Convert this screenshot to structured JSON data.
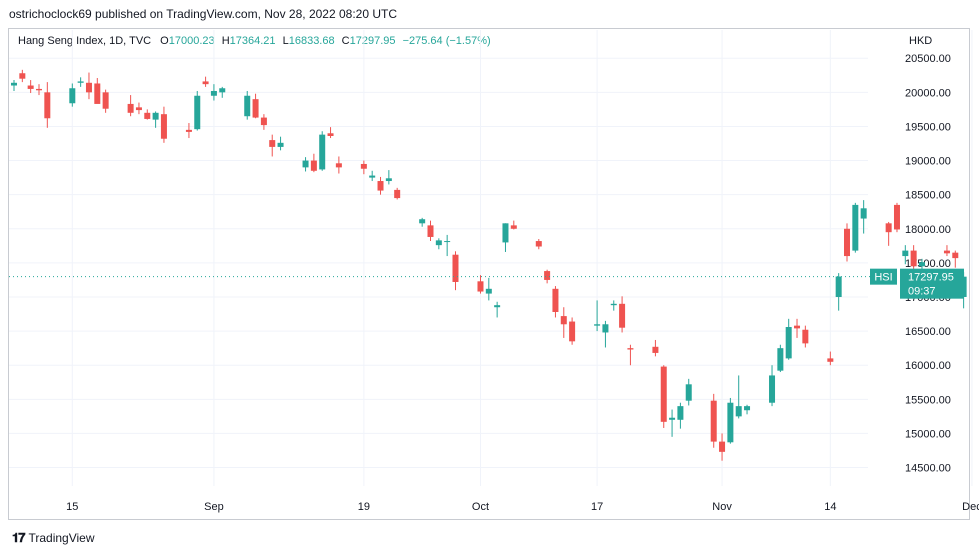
{
  "header": {
    "published_by": "ostrichoclock69 published on TradingView.com, Nov 28, 2022 08:20 UTC"
  },
  "legend": {
    "symbol": "Hang Seng Index, 1D, TVC",
    "open_label": "O",
    "open": "17000.23",
    "high_label": "H",
    "high": "17364.21",
    "low_label": "L",
    "low": "16833.68",
    "close_label": "C",
    "close": "17297.95",
    "change": "−275.64 (−1.57%)"
  },
  "currency": "HKD",
  "price_tag": {
    "symbol": "HSI",
    "price": "17297.95",
    "countdown": "09:37"
  },
  "footer": {
    "logo": "TradingView"
  },
  "colors": {
    "up": "#26a69a",
    "down": "#ef5350",
    "text": "#131722",
    "grid": "#f0f3fa"
  },
  "chart_data": {
    "type": "candlestick",
    "ylim": [
      14200,
      20650
    ],
    "y_ticks": [
      "20500.00",
      "20000.00",
      "19500.00",
      "19000.00",
      "18500.00",
      "18000.00",
      "17500.00",
      "17000.00",
      "16500.00",
      "16000.00",
      "15500.00",
      "15000.00",
      "14500.00"
    ],
    "y_tick_values": [
      20500,
      20000,
      19500,
      19000,
      18500,
      18000,
      17500,
      17000,
      16500,
      16000,
      15500,
      15000,
      14500
    ],
    "x_tick_labels": [
      {
        "label": "15",
        "date": "2022-08-15"
      },
      {
        "label": "Sep",
        "date": "2022-09-01"
      },
      {
        "label": "19",
        "date": "2022-09-19"
      },
      {
        "label": "Oct",
        "date": "2022-10-03"
      },
      {
        "label": "17",
        "date": "2022-10-17"
      },
      {
        "label": "Nov",
        "date": "2022-11-01"
      },
      {
        "label": "14",
        "date": "2022-11-14"
      },
      {
        "label": "Dec",
        "date": "2022-12-01"
      }
    ],
    "last_price": 17297.95,
    "candles": [
      {
        "date": "2022-08-08",
        "o": 20100,
        "h": 20180,
        "l": 20020,
        "c": 20140
      },
      {
        "date": "2022-08-09",
        "o": 20280,
        "h": 20330,
        "l": 20150,
        "c": 20200
      },
      {
        "date": "2022-08-10",
        "o": 20100,
        "h": 20180,
        "l": 19990,
        "c": 20050
      },
      {
        "date": "2022-08-11",
        "o": 20050,
        "h": 20120,
        "l": 19960,
        "c": 20030
      },
      {
        "date": "2022-08-12",
        "o": 20000,
        "h": 20150,
        "l": 19480,
        "c": 19620
      },
      {
        "date": "2022-08-15",
        "o": 19840,
        "h": 20130,
        "l": 19790,
        "c": 20060
      },
      {
        "date": "2022-08-16",
        "o": 20140,
        "h": 20220,
        "l": 20080,
        "c": 20160
      },
      {
        "date": "2022-08-17",
        "o": 20140,
        "h": 20290,
        "l": 19900,
        "c": 20000
      },
      {
        "date": "2022-08-18",
        "o": 20130,
        "h": 20210,
        "l": 19870,
        "c": 19830
      },
      {
        "date": "2022-08-19",
        "o": 20000,
        "h": 20040,
        "l": 19700,
        "c": 19760
      },
      {
        "date": "2022-08-22",
        "o": 19830,
        "h": 19960,
        "l": 19650,
        "c": 19700
      },
      {
        "date": "2022-08-23",
        "o": 19780,
        "h": 19850,
        "l": 19680,
        "c": 19740
      },
      {
        "date": "2022-08-24",
        "o": 19700,
        "h": 19750,
        "l": 19600,
        "c": 19610
      },
      {
        "date": "2022-08-25",
        "o": 19600,
        "h": 19720,
        "l": 19480,
        "c": 19700
      },
      {
        "date": "2022-08-26",
        "o": 19680,
        "h": 19790,
        "l": 19260,
        "c": 19320
      },
      {
        "date": "2022-08-29",
        "o": 19450,
        "h": 19550,
        "l": 19330,
        "c": 19420
      },
      {
        "date": "2022-08-30",
        "o": 19460,
        "h": 20020,
        "l": 19440,
        "c": 19950
      },
      {
        "date": "2022-08-31",
        "o": 20160,
        "h": 20230,
        "l": 20080,
        "c": 20120
      },
      {
        "date": "2022-09-01",
        "o": 19950,
        "h": 20120,
        "l": 19880,
        "c": 20020
      },
      {
        "date": "2022-09-02",
        "o": 20000,
        "h": 20080,
        "l": 19920,
        "c": 20060
      },
      {
        "date": "2022-09-05",
        "o": 19650,
        "h": 20020,
        "l": 19600,
        "c": 19950
      },
      {
        "date": "2022-09-06",
        "o": 19900,
        "h": 19980,
        "l": 19620,
        "c": 19630
      },
      {
        "date": "2022-09-07",
        "o": 19630,
        "h": 19680,
        "l": 19450,
        "c": 19520
      },
      {
        "date": "2022-09-08",
        "o": 19300,
        "h": 19380,
        "l": 19060,
        "c": 19200
      },
      {
        "date": "2022-09-09",
        "o": 19200,
        "h": 19350,
        "l": 19150,
        "c": 19260
      },
      {
        "date": "2022-09-12",
        "o": 18900,
        "h": 19050,
        "l": 18840,
        "c": 19000
      },
      {
        "date": "2022-09-13",
        "o": 19000,
        "h": 19100,
        "l": 18830,
        "c": 18850
      },
      {
        "date": "2022-09-14",
        "o": 18870,
        "h": 19430,
        "l": 18850,
        "c": 19380
      },
      {
        "date": "2022-09-15",
        "o": 19400,
        "h": 19490,
        "l": 19330,
        "c": 19360
      },
      {
        "date": "2022-09-16",
        "o": 18960,
        "h": 19060,
        "l": 18810,
        "c": 18900
      },
      {
        "date": "2022-09-19",
        "o": 18950,
        "h": 19000,
        "l": 18800,
        "c": 18880
      },
      {
        "date": "2022-09-20",
        "o": 18750,
        "h": 18850,
        "l": 18700,
        "c": 18780
      },
      {
        "date": "2022-09-21",
        "o": 18700,
        "h": 18760,
        "l": 18500,
        "c": 18560
      },
      {
        "date": "2022-09-22",
        "o": 18700,
        "h": 18860,
        "l": 18650,
        "c": 18740
      },
      {
        "date": "2022-09-23",
        "o": 18570,
        "h": 18600,
        "l": 18430,
        "c": 18450
      },
      {
        "date": "2022-09-26",
        "o": 18080,
        "h": 18160,
        "l": 18030,
        "c": 18140
      },
      {
        "date": "2022-09-27",
        "o": 18050,
        "h": 18120,
        "l": 17820,
        "c": 17880
      },
      {
        "date": "2022-09-28",
        "o": 17760,
        "h": 17860,
        "l": 17700,
        "c": 17830
      },
      {
        "date": "2022-09-29",
        "o": 17820,
        "h": 17910,
        "l": 17600,
        "c": 17820
      },
      {
        "date": "2022-09-30",
        "o": 17620,
        "h": 17670,
        "l": 17100,
        "c": 17220
      },
      {
        "date": "2022-10-03",
        "o": 17230,
        "h": 17320,
        "l": 17050,
        "c": 17080
      },
      {
        "date": "2022-10-04",
        "o": 17050,
        "h": 17280,
        "l": 16950,
        "c": 17120
      },
      {
        "date": "2022-10-05",
        "o": 16850,
        "h": 16930,
        "l": 16700,
        "c": 16880
      },
      {
        "date": "2022-10-06",
        "o": 17800,
        "h": 18080,
        "l": 17660,
        "c": 18080
      },
      {
        "date": "2022-10-07",
        "o": 18050,
        "h": 18120,
        "l": 17990,
        "c": 18000
      },
      {
        "date": "2022-10-10",
        "o": 17820,
        "h": 17850,
        "l": 17700,
        "c": 17740
      },
      {
        "date": "2022-10-11",
        "o": 17380,
        "h": 17400,
        "l": 17200,
        "c": 17250
      },
      {
        "date": "2022-10-12",
        "o": 17120,
        "h": 17160,
        "l": 16700,
        "c": 16780
      },
      {
        "date": "2022-10-13",
        "o": 16720,
        "h": 16850,
        "l": 16400,
        "c": 16600
      },
      {
        "date": "2022-10-14",
        "o": 16640,
        "h": 16700,
        "l": 16300,
        "c": 16350
      },
      {
        "date": "2022-10-17",
        "o": 16580,
        "h": 16950,
        "l": 16500,
        "c": 16600
      },
      {
        "date": "2022-10-18",
        "o": 16480,
        "h": 16650,
        "l": 16260,
        "c": 16600
      },
      {
        "date": "2022-10-19",
        "o": 16880,
        "h": 16950,
        "l": 16800,
        "c": 16900
      },
      {
        "date": "2022-10-20",
        "o": 16900,
        "h": 17010,
        "l": 16480,
        "c": 16550
      },
      {
        "date": "2022-10-21",
        "o": 16250,
        "h": 16300,
        "l": 16000,
        "c": 16230
      },
      {
        "date": "2022-10-24",
        "o": 16270,
        "h": 16370,
        "l": 16130,
        "c": 16180
      },
      {
        "date": "2022-10-25",
        "o": 15980,
        "h": 16000,
        "l": 15080,
        "c": 15170
      },
      {
        "date": "2022-10-26",
        "o": 15200,
        "h": 15350,
        "l": 14950,
        "c": 15230
      },
      {
        "date": "2022-10-27",
        "o": 15200,
        "h": 15450,
        "l": 15070,
        "c": 15400
      },
      {
        "date": "2022-10-28",
        "o": 15480,
        "h": 15800,
        "l": 15410,
        "c": 15720
      },
      {
        "date": "2022-10-31",
        "o": 15480,
        "h": 15580,
        "l": 14790,
        "c": 14880
      },
      {
        "date": "2022-11-01",
        "o": 14880,
        "h": 15000,
        "l": 14600,
        "c": 14730
      },
      {
        "date": "2022-11-02",
        "o": 14870,
        "h": 15520,
        "l": 14850,
        "c": 15450
      },
      {
        "date": "2022-11-03",
        "o": 15250,
        "h": 15850,
        "l": 15220,
        "c": 15400
      },
      {
        "date": "2022-11-04",
        "o": 15340,
        "h": 15420,
        "l": 15280,
        "c": 15400
      },
      {
        "date": "2022-11-07",
        "o": 15450,
        "h": 16000,
        "l": 15400,
        "c": 15850
      },
      {
        "date": "2022-11-08",
        "o": 15920,
        "h": 16300,
        "l": 15900,
        "c": 16250
      },
      {
        "date": "2022-11-09",
        "o": 16100,
        "h": 16680,
        "l": 16080,
        "c": 16560
      },
      {
        "date": "2022-11-10",
        "o": 16580,
        "h": 16680,
        "l": 16400,
        "c": 16540
      },
      {
        "date": "2022-11-11",
        "o": 16520,
        "h": 16580,
        "l": 16260,
        "c": 16320
      },
      {
        "date": "2022-11-14",
        "o": 16100,
        "h": 16200,
        "l": 16000,
        "c": 16050
      },
      {
        "date": "2022-11-15",
        "o": 17000,
        "h": 17350,
        "l": 16800,
        "c": 17300
      },
      {
        "date": "2022-11-16",
        "o": 18000,
        "h": 18080,
        "l": 17520,
        "c": 17600
      },
      {
        "date": "2022-11-17",
        "o": 17680,
        "h": 18380,
        "l": 17650,
        "c": 18350
      },
      {
        "date": "2022-11-18",
        "o": 18150,
        "h": 18420,
        "l": 17930,
        "c": 18300
      },
      {
        "date": "2022-11-21",
        "o": 18080,
        "h": 18100,
        "l": 17750,
        "c": 17950
      },
      {
        "date": "2022-11-22",
        "o": 18350,
        "h": 18380,
        "l": 17950,
        "c": 17990
      },
      {
        "date": "2022-11-23",
        "o": 17600,
        "h": 17760,
        "l": 17480,
        "c": 17680
      },
      {
        "date": "2022-11-24",
        "o": 17680,
        "h": 17760,
        "l": 17350,
        "c": 17450
      },
      {
        "date": "2022-11-25",
        "o": 17450,
        "h": 17560,
        "l": 17380,
        "c": 17510
      },
      {
        "date": "2022-11-28",
        "o": 17680,
        "h": 17760,
        "l": 17600,
        "c": 17640
      },
      {
        "date": "2022-11-29",
        "o": 17650,
        "h": 17680,
        "l": 17430,
        "c": 17570
      },
      {
        "date": "2022-11-30",
        "o": 17000,
        "h": 17364.21,
        "l": 16833.68,
        "c": 17297.95
      }
    ]
  }
}
